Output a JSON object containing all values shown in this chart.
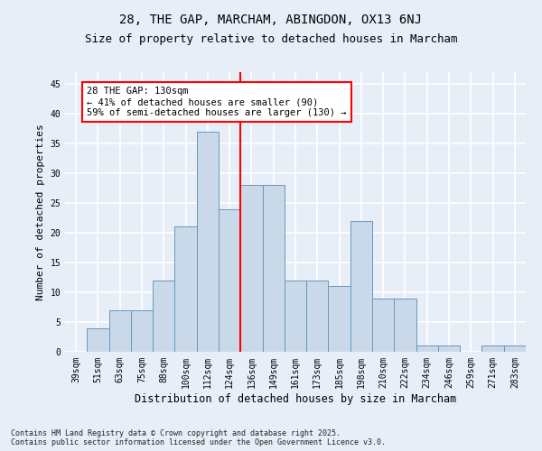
{
  "title": "28, THE GAP, MARCHAM, ABINGDON, OX13 6NJ",
  "subtitle": "Size of property relative to detached houses in Marcham",
  "xlabel": "Distribution of detached houses by size in Marcham",
  "ylabel": "Number of detached properties",
  "categories": [
    "39sqm",
    "51sqm",
    "63sqm",
    "75sqm",
    "88sqm",
    "100sqm",
    "112sqm",
    "124sqm",
    "136sqm",
    "149sqm",
    "161sqm",
    "173sqm",
    "185sqm",
    "198sqm",
    "210sqm",
    "222sqm",
    "234sqm",
    "246sqm",
    "259sqm",
    "271sqm",
    "283sqm"
  ],
  "values": [
    0,
    4,
    7,
    7,
    12,
    21,
    37,
    24,
    28,
    28,
    12,
    12,
    11,
    22,
    9,
    9,
    1,
    1,
    0,
    1,
    1
  ],
  "bar_color": "#c9d9ea",
  "bar_edge_color": "#6699bb",
  "vline_color": "red",
  "annotation_text": "28 THE GAP: 130sqm\n← 41% of detached houses are smaller (90)\n59% of semi-detached houses are larger (130) →",
  "annotation_box_color": "white",
  "annotation_box_edge_color": "red",
  "ylim": [
    0,
    47
  ],
  "yticks": [
    0,
    5,
    10,
    15,
    20,
    25,
    30,
    35,
    40,
    45
  ],
  "background_color": "#e8eef8",
  "plot_background_color": "#e8eef8",
  "grid_color": "white",
  "footer": "Contains HM Land Registry data © Crown copyright and database right 2025.\nContains public sector information licensed under the Open Government Licence v3.0.",
  "title_fontsize": 10,
  "subtitle_fontsize": 9,
  "xlabel_fontsize": 8.5,
  "ylabel_fontsize": 8,
  "tick_fontsize": 7,
  "footer_fontsize": 6,
  "annot_fontsize": 7.5
}
